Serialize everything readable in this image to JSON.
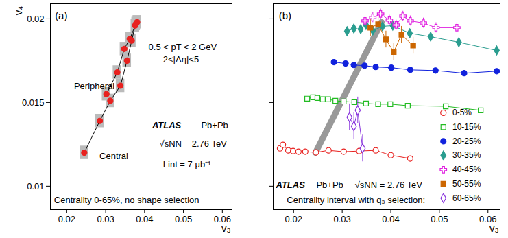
{
  "chart_data": [
    {
      "type": "scatter",
      "title": "(a)",
      "xlabel": "v₃",
      "ylabel": "v₄",
      "xlim": [
        0.0158,
        0.0625
      ],
      "ylim": [
        0.0086,
        0.0209
      ],
      "xticks": [
        0.02,
        0.03,
        0.04,
        0.05,
        0.06
      ],
      "yticks": [
        0.01,
        0.015,
        0.02
      ],
      "annotations": [
        "0.5 < pT < 2 GeV",
        "2<|Δη|<5",
        "ATLAS",
        "Pb+Pb",
        "√sNN = 2.76 TeV",
        "Lint = 7 μb⁻¹",
        "Peripheral",
        "Central",
        "Centrality 0-65%, no shape selection"
      ],
      "series": [
        {
          "color": "#e8211f",
          "marker": "circle",
          "line_style": "solid",
          "x": [
            0.0245,
            0.0285,
            0.0312,
            0.0338,
            0.0355,
            0.0367,
            0.0376,
            0.0381,
            0.0378,
            0.0362,
            0.0348,
            0.033,
            0.0302
          ],
          "y": [
            0.012,
            0.0139,
            0.0151,
            0.016,
            0.0175,
            0.0187,
            0.0196,
            0.0198,
            0.0197,
            0.0188,
            0.0182,
            0.0168,
            0.0155
          ],
          "xerr": [
            0.0011,
            0.0011,
            0.0011,
            0.0011,
            0.0011,
            0.0011,
            0.0011,
            0.0011,
            0.0011,
            0.0011,
            0.0011,
            0.0011,
            0.0011
          ],
          "yerr": [
            0.0004,
            0.0004,
            0.0004,
            0.0004,
            0.0004,
            0.0004,
            0.0004,
            0.0004,
            0.0004,
            0.0004,
            0.0004,
            0.0004,
            0.0004
          ]
        }
      ]
    },
    {
      "type": "line",
      "title": "(b)",
      "xlabel": "v₃",
      "xlim": [
        0.0158,
        0.0625
      ],
      "ylim": [
        0.0086,
        0.0209
      ],
      "xticks": [
        0.02,
        0.03,
        0.04,
        0.05,
        0.06
      ],
      "yticks": [
        0.01,
        0.015,
        0.02
      ],
      "tick_labels": "x",
      "legend": "lower right",
      "annotations": [
        "ATLAS",
        "Pb+Pb",
        "√sNN = 2.76 TeV",
        "Centrality interval with q₃ selection:"
      ],
      "band": {
        "color": "#999999",
        "x": [
          0.0245,
          0.0381
        ],
        "y": [
          0.012,
          0.0198
        ]
      },
      "series": [
        {
          "name": "0-5%",
          "color": "#e8211f",
          "marker": "open circle",
          "x": [
            0.0172,
            0.0178,
            0.0189,
            0.0199,
            0.021,
            0.0224,
            0.0246,
            0.0272,
            0.0303,
            0.0335,
            0.0369,
            0.04,
            0.044
          ],
          "y": [
            0.01226,
            0.01247,
            0.01214,
            0.0121,
            0.01206,
            0.01206,
            0.01202,
            0.01214,
            0.01206,
            0.0121,
            0.01214,
            0.01185,
            0.01165
          ]
        },
        {
          "name": "10-15%",
          "color": "#22bb22",
          "marker": "open square",
          "x": [
            0.0228,
            0.024,
            0.0249,
            0.026,
            0.0271,
            0.0286,
            0.0303,
            0.0325,
            0.0349,
            0.0374,
            0.0399,
            0.0435,
            0.0513,
            0.0585
          ],
          "y": [
            0.01523,
            0.01531,
            0.01527,
            0.01519,
            0.01519,
            0.0151,
            0.01506,
            0.01502,
            0.01494,
            0.0149,
            0.0149,
            0.01481,
            0.01477,
            0.01453
          ]
        },
        {
          "name": "20-25%",
          "color": "#1122dd",
          "marker": "circle",
          "x": [
            0.0283,
            0.0307,
            0.0324,
            0.0346,
            0.0369,
            0.0401,
            0.044,
            0.0492,
            0.0551,
            0.0618
          ],
          "y": [
            0.01741,
            0.01733,
            0.01724,
            0.0172,
            0.01712,
            0.01708,
            0.01695,
            0.01691,
            0.01675,
            0.01687
          ]
        },
        {
          "name": "30-35%",
          "color": "#2a9d8f",
          "marker": "diamond",
          "x": [
            0.031,
            0.0324,
            0.0338,
            0.0349,
            0.0363,
            0.0383,
            0.0404,
            0.0439,
            0.0482,
            0.054,
            0.0618
          ],
          "y": [
            0.01926,
            0.01942,
            0.01938,
            0.01963,
            0.0193,
            0.01955,
            0.01959,
            0.01914,
            0.01893,
            0.0186,
            0.01811
          ]
        },
        {
          "name": "40-45%",
          "color": "#e020e0",
          "marker": "open cross",
          "x": [
            0.0347,
            0.0363,
            0.0379,
            0.0397,
            0.0411,
            0.0425,
            0.044,
            0.0467,
            0.0493,
            0.0536
          ],
          "y": [
            0.01988,
            0.02008,
            0.02029,
            0.01992,
            0.01963,
            0.02016,
            0.01988,
            0.01975,
            0.01947,
            0.01947
          ],
          "yerr": [
            0.0003,
            0.0003,
            0.0003,
            0.0003,
            0.0003,
            0.0003,
            0.0003,
            0.0003,
            0.0003,
            0.0003
          ]
        },
        {
          "name": "50-55%",
          "color": "#cc6600",
          "marker": "square",
          "x": [
            0.0358,
            0.0374,
            0.039,
            0.0406,
            0.0422,
            0.0446
          ],
          "y": [
            0.01947,
            0.01967,
            0.01877,
            0.01802,
            0.01905,
            0.0184
          ],
          "yerr": [
            0.0005,
            0.0005,
            0.0005,
            0.0005,
            0.0005,
            0.0005
          ]
        },
        {
          "name": "60-65%",
          "color": "#8833dd",
          "marker": "open diamond",
          "x": [
            0.0315,
            0.0324,
            0.0332,
            0.0342
          ],
          "y": [
            0.01412,
            0.01358,
            0.01453,
            0.01226
          ],
          "yerr": [
            0.0008,
            0.0008,
            0.0008,
            0.0008
          ]
        }
      ]
    }
  ]
}
